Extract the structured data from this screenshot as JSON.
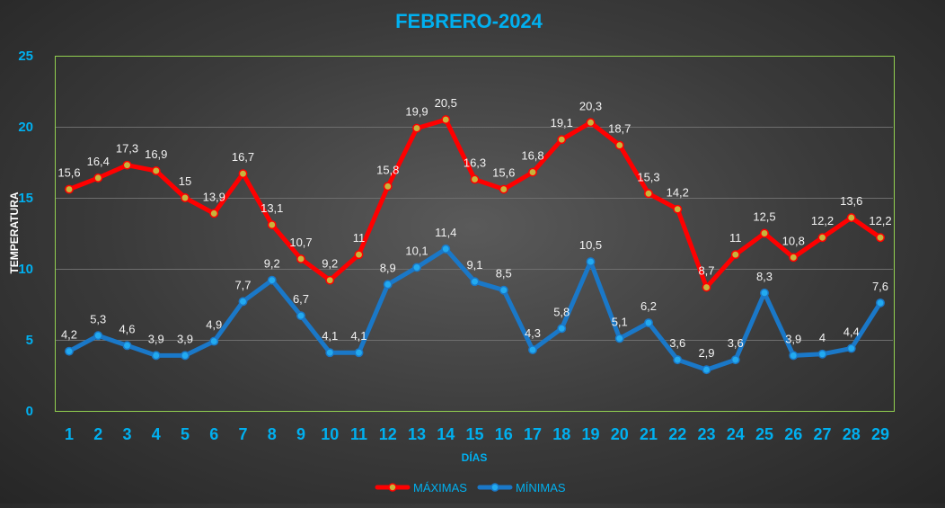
{
  "chart_data": {
    "type": "line",
    "title": "FEBRERO-2024",
    "xlabel": "DÍAS",
    "ylabel": "TEMPERATURA",
    "ylim": [
      0,
      25
    ],
    "yticks": [
      0,
      5,
      10,
      15,
      20,
      25
    ],
    "grid": true,
    "legend_position": "bottom",
    "categories": [
      "1",
      "2",
      "3",
      "4",
      "5",
      "6",
      "7",
      "8",
      "9",
      "10",
      "11",
      "12",
      "13",
      "14",
      "15",
      "16",
      "17",
      "18",
      "19",
      "20",
      "21",
      "22",
      "23",
      "24",
      "25",
      "26",
      "27",
      "28",
      "29"
    ],
    "series": [
      {
        "name": "MÁXIMAS",
        "color": "#ff0000",
        "marker_color": "#c8b43c",
        "values": [
          15.6,
          16.4,
          17.3,
          16.9,
          15,
          13.9,
          16.7,
          13.1,
          10.7,
          9.2,
          11,
          15.8,
          19.9,
          20.5,
          16.3,
          15.6,
          16.8,
          19.1,
          20.3,
          18.7,
          15.3,
          14.2,
          8.7,
          11,
          12.5,
          10.8,
          12.2,
          13.6,
          12.2
        ],
        "labels": [
          "15,6",
          "16,4",
          "17,3",
          "16,9",
          "15",
          "13,9",
          "16,7",
          "13,1",
          "10,7",
          "9,2",
          "11",
          "15,8",
          "19,9",
          "20,5",
          "16,3",
          "15,6",
          "16,8",
          "19,1",
          "20,3",
          "18,7",
          "15,3",
          "14,2",
          "8,7",
          "11",
          "12,5",
          "10,8",
          "12,2",
          "13,6",
          "12,2"
        ]
      },
      {
        "name": "MÍNIMAS",
        "color": "#1a78c8",
        "marker_color": "#22aaf0",
        "values": [
          4.2,
          5.3,
          4.6,
          3.9,
          3.9,
          4.9,
          7.7,
          9.2,
          6.7,
          4.1,
          4.1,
          8.9,
          10.1,
          11.4,
          9.1,
          8.5,
          4.3,
          5.8,
          10.5,
          5.1,
          6.2,
          3.6,
          2.9,
          3.6,
          8.3,
          3.9,
          4,
          4.4,
          7.6
        ],
        "labels": [
          "4,2",
          "5,3",
          "4,6",
          "3,9",
          "3,9",
          "4,9",
          "7,7",
          "9,2",
          "6,7",
          "4,1",
          "4,1",
          "8,9",
          "10,1",
          "11,4",
          "9,1",
          "8,5",
          "4,3",
          "5,8",
          "10,5",
          "5,1",
          "6,2",
          "3,6",
          "2,9",
          "3,6",
          "8,3",
          "3,9",
          "4",
          "4,4",
          "7,6"
        ]
      }
    ],
    "colors": {
      "title": "#00b0f0",
      "axis_text": "#00b0f0",
      "ylabel_text": "#ffffff",
      "data_label": "#f2f2f2",
      "plot_border": "#92d050",
      "gridline": "#6e6e6e"
    }
  }
}
